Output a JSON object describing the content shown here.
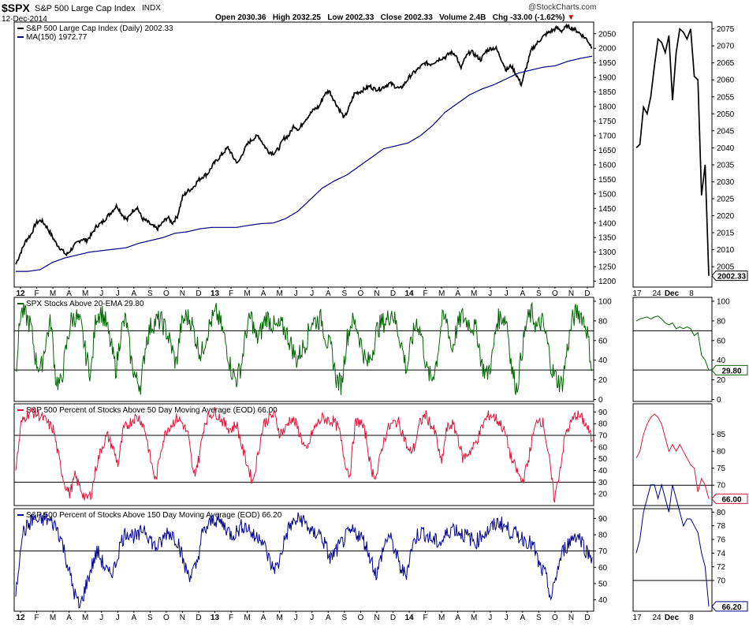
{
  "header": {
    "symbol": "$SPX",
    "name": "S&P 500 Large Cap Index",
    "exchange": "INDX",
    "date": "12-Dec-2014",
    "open": "Open 2030.36",
    "high": "High 2032.25",
    "low": "Low 2002.33",
    "close": "Close 2002.33",
    "volume": "Volume 2.4B",
    "chg": "Chg -33.00 (-1.62%)",
    "watermark": "@StockCharts.com"
  },
  "colors": {
    "price": "#000000",
    "ma": "#000080",
    "ema20": "#006400",
    "ma50": "#dc143c",
    "ma150": "#00008b",
    "down_arrow": "#cc0000"
  },
  "x_labels": [
    "12",
    "F",
    "M",
    "A",
    "M",
    "J",
    "J",
    "A",
    "S",
    "O",
    "N",
    "D",
    "13",
    "F",
    "M",
    "A",
    "M",
    "J",
    "J",
    "A",
    "S",
    "O",
    "N",
    "D",
    "14",
    "F",
    "M",
    "A",
    "M",
    "J",
    "J",
    "A",
    "S",
    "O",
    "N",
    "D"
  ],
  "zoom_x_labels": [
    "17",
    "24",
    "Dec",
    "8"
  ],
  "chart_data": [
    {
      "id": "price",
      "type": "line",
      "legend": [
        "S&P 500 Large Cap Index (Daily) 2002.33",
        "MA(150) 1972.77"
      ],
      "ylim": [
        1180,
        2090
      ],
      "yticks": [
        1200,
        1250,
        1300,
        1350,
        1400,
        1450,
        1500,
        1550,
        1600,
        1650,
        1700,
        1750,
        1800,
        1850,
        1900,
        1950,
        2000,
        2050
      ],
      "last_label": "2002.33",
      "price_anchors": [
        1258,
        1300,
        1340,
        1360,
        1400,
        1410,
        1390,
        1360,
        1330,
        1310,
        1290,
        1310,
        1330,
        1345,
        1340,
        1360,
        1390,
        1400,
        1420,
        1440,
        1460,
        1430,
        1410,
        1440,
        1455,
        1415,
        1405,
        1390,
        1380,
        1400,
        1420,
        1400,
        1425,
        1490,
        1510,
        1520,
        1545,
        1560,
        1570,
        1600,
        1620,
        1640,
        1660,
        1625,
        1605,
        1645,
        1675,
        1690,
        1700,
        1670,
        1645,
        1640,
        1655,
        1690,
        1700,
        1735,
        1720,
        1750,
        1770,
        1790,
        1800,
        1840,
        1855,
        1820,
        1790,
        1760,
        1800,
        1845,
        1850,
        1860,
        1870,
        1860,
        1860,
        1870,
        1880,
        1870,
        1860,
        1880,
        1905,
        1920,
        1935,
        1950,
        1945,
        1955,
        1965,
        1970,
        1985,
        1980,
        1930,
        1970,
        1990,
        1975,
        1960,
        1990,
        2000,
        2000,
        1965,
        1925,
        1940,
        1910,
        1875,
        1935,
        1995,
        2015,
        2035,
        2050,
        2060,
        2070,
        2060,
        2075,
        2070,
        2060,
        2045,
        2030,
        2002
      ],
      "ma_anchors": [
        1234,
        1234,
        1240,
        1265,
        1280,
        1290,
        1300,
        1305,
        1310,
        1315,
        1330,
        1340,
        1350,
        1365,
        1370,
        1380,
        1385,
        1385,
        1385,
        1392,
        1398,
        1400,
        1415,
        1440,
        1480,
        1520,
        1545,
        1565,
        1595,
        1625,
        1655,
        1665,
        1675,
        1700,
        1735,
        1780,
        1810,
        1840,
        1860,
        1875,
        1895,
        1915,
        1925,
        1935,
        1940,
        1955,
        1965,
        1972.77
      ]
    },
    {
      "id": "zoom_price",
      "type": "line",
      "ylim": [
        1999,
        2077
      ],
      "yticks": [
        2005,
        2010,
        2015,
        2020,
        2025,
        2030,
        2035,
        2040,
        2045,
        2050,
        2055,
        2060,
        2065,
        2070,
        2075
      ],
      "last_label": "2002.33",
      "values": [
        2040,
        2041,
        2052,
        2050,
        2055,
        2064,
        2072,
        2071,
        2068,
        2073,
        2054,
        2068,
        2075,
        2074,
        2072,
        2075,
        2061,
        2060,
        2026,
        2035,
        2002.33
      ]
    },
    {
      "id": "ema20",
      "type": "line",
      "legend": [
        "SPX Stocks Above 20-EMA 29.80"
      ],
      "ylim": [
        -2,
        104
      ],
      "yticks": [
        0,
        20,
        40,
        60,
        80,
        100
      ],
      "ref_lines": [
        70,
        30
      ],
      "last_label": "29.80",
      "anchors": [
        30,
        90,
        85,
        75,
        40,
        30,
        60,
        80,
        20,
        15,
        50,
        80,
        85,
        75,
        45,
        25,
        85,
        90,
        78,
        55,
        30,
        70,
        82,
        40,
        20,
        15,
        60,
        75,
        80,
        80,
        70,
        55,
        35,
        75,
        85,
        80,
        60,
        45,
        65,
        80,
        88,
        75,
        55,
        30,
        20,
        35,
        70,
        85,
        60,
        70,
        85,
        78,
        72,
        75,
        68,
        55,
        40,
        50,
        60,
        80,
        80,
        82,
        60,
        50,
        20,
        15,
        60,
        80,
        75,
        55,
        35,
        45,
        70,
        78,
        80,
        90,
        75,
        55,
        30,
        60,
        80,
        65,
        30,
        20,
        40,
        80,
        82,
        50,
        72,
        85,
        80,
        75,
        70,
        35,
        25,
        40,
        80,
        85,
        80,
        30,
        10,
        50,
        80,
        88,
        72,
        80,
        60,
        30,
        20,
        15,
        50,
        80,
        90,
        85,
        70,
        29.8
      ],
      "zoom_values": [
        80,
        82,
        83,
        84,
        82,
        84,
        85,
        82,
        78,
        76,
        78,
        72,
        74,
        72,
        74,
        72,
        65,
        68,
        45,
        40,
        29.8
      ]
    },
    {
      "id": "ma50",
      "type": "line",
      "legend": [
        "S&P 500 Percent of Stocks Above 50 Day Moving Average (EOD) 66.00"
      ],
      "ylim": [
        10,
        97
      ],
      "yticks": [
        20,
        30,
        40,
        50,
        60,
        70,
        80,
        90
      ],
      "ref_lines": [
        70,
        30
      ],
      "last_label": "66.00",
      "anchors": [
        40,
        80,
        88,
        90,
        88,
        85,
        80,
        75,
        50,
        30,
        20,
        35,
        25,
        15,
        20,
        45,
        60,
        70,
        60,
        45,
        75,
        80,
        85,
        85,
        75,
        50,
        30,
        60,
        75,
        80,
        85,
        80,
        70,
        35,
        50,
        80,
        88,
        90,
        85,
        78,
        75,
        80,
        60,
        45,
        30,
        55,
        80,
        85,
        88,
        72,
        75,
        85,
        80,
        68,
        55,
        72,
        80,
        85,
        83,
        82,
        75,
        50,
        35,
        80,
        82,
        70,
        40,
        35,
        60,
        75,
        80,
        82,
        70,
        55,
        60,
        80,
        88,
        80,
        70,
        45,
        75,
        80,
        70,
        50,
        55,
        60,
        70,
        82,
        88,
        85,
        80,
        70,
        50,
        40,
        30,
        45,
        70,
        85,
        80,
        50,
        15,
        40,
        70,
        80,
        88,
        85,
        78,
        66
      ],
      "zoom_values": [
        78,
        80,
        85,
        88,
        90,
        91,
        90,
        88,
        84,
        80,
        82,
        80,
        82,
        80,
        78,
        76,
        75,
        68,
        72,
        70,
        66
      ]
    },
    {
      "id": "ma150",
      "type": "line",
      "legend": [
        "S&P 500 Percent of Stocks Above 150 Day Moving Average (EOD) 66.20"
      ],
      "ylim": [
        33,
        96
      ],
      "yticks": [
        40,
        50,
        60,
        70,
        80,
        90
      ],
      "ref_lines": [
        70
      ],
      "last_label": "66.20",
      "anchors": [
        42,
        80,
        85,
        90,
        88,
        90,
        88,
        85,
        75,
        60,
        45,
        35,
        48,
        60,
        70,
        62,
        55,
        60,
        75,
        82,
        80,
        78,
        85,
        78,
        72,
        75,
        82,
        80,
        75,
        60,
        55,
        60,
        80,
        85,
        90,
        88,
        85,
        80,
        82,
        86,
        84,
        78,
        80,
        70,
        60,
        60,
        75,
        85,
        88,
        90,
        86,
        80,
        82,
        75,
        65,
        70,
        75,
        80,
        82,
        80,
        75,
        65,
        55,
        70,
        80,
        72,
        60,
        55,
        72,
        80,
        82,
        78,
        76,
        75,
        80,
        85,
        82,
        80,
        78,
        75,
        80,
        82,
        85,
        88,
        85,
        82,
        80,
        78,
        76,
        72,
        60,
        55,
        40,
        58,
        70,
        75,
        80,
        78,
        70,
        66.2
      ],
      "zoom_values": [
        74,
        76,
        80,
        82,
        84,
        84,
        82,
        84,
        82,
        80,
        84,
        82,
        80,
        78,
        79,
        79,
        78,
        77,
        74,
        72,
        66.2
      ]
    }
  ]
}
